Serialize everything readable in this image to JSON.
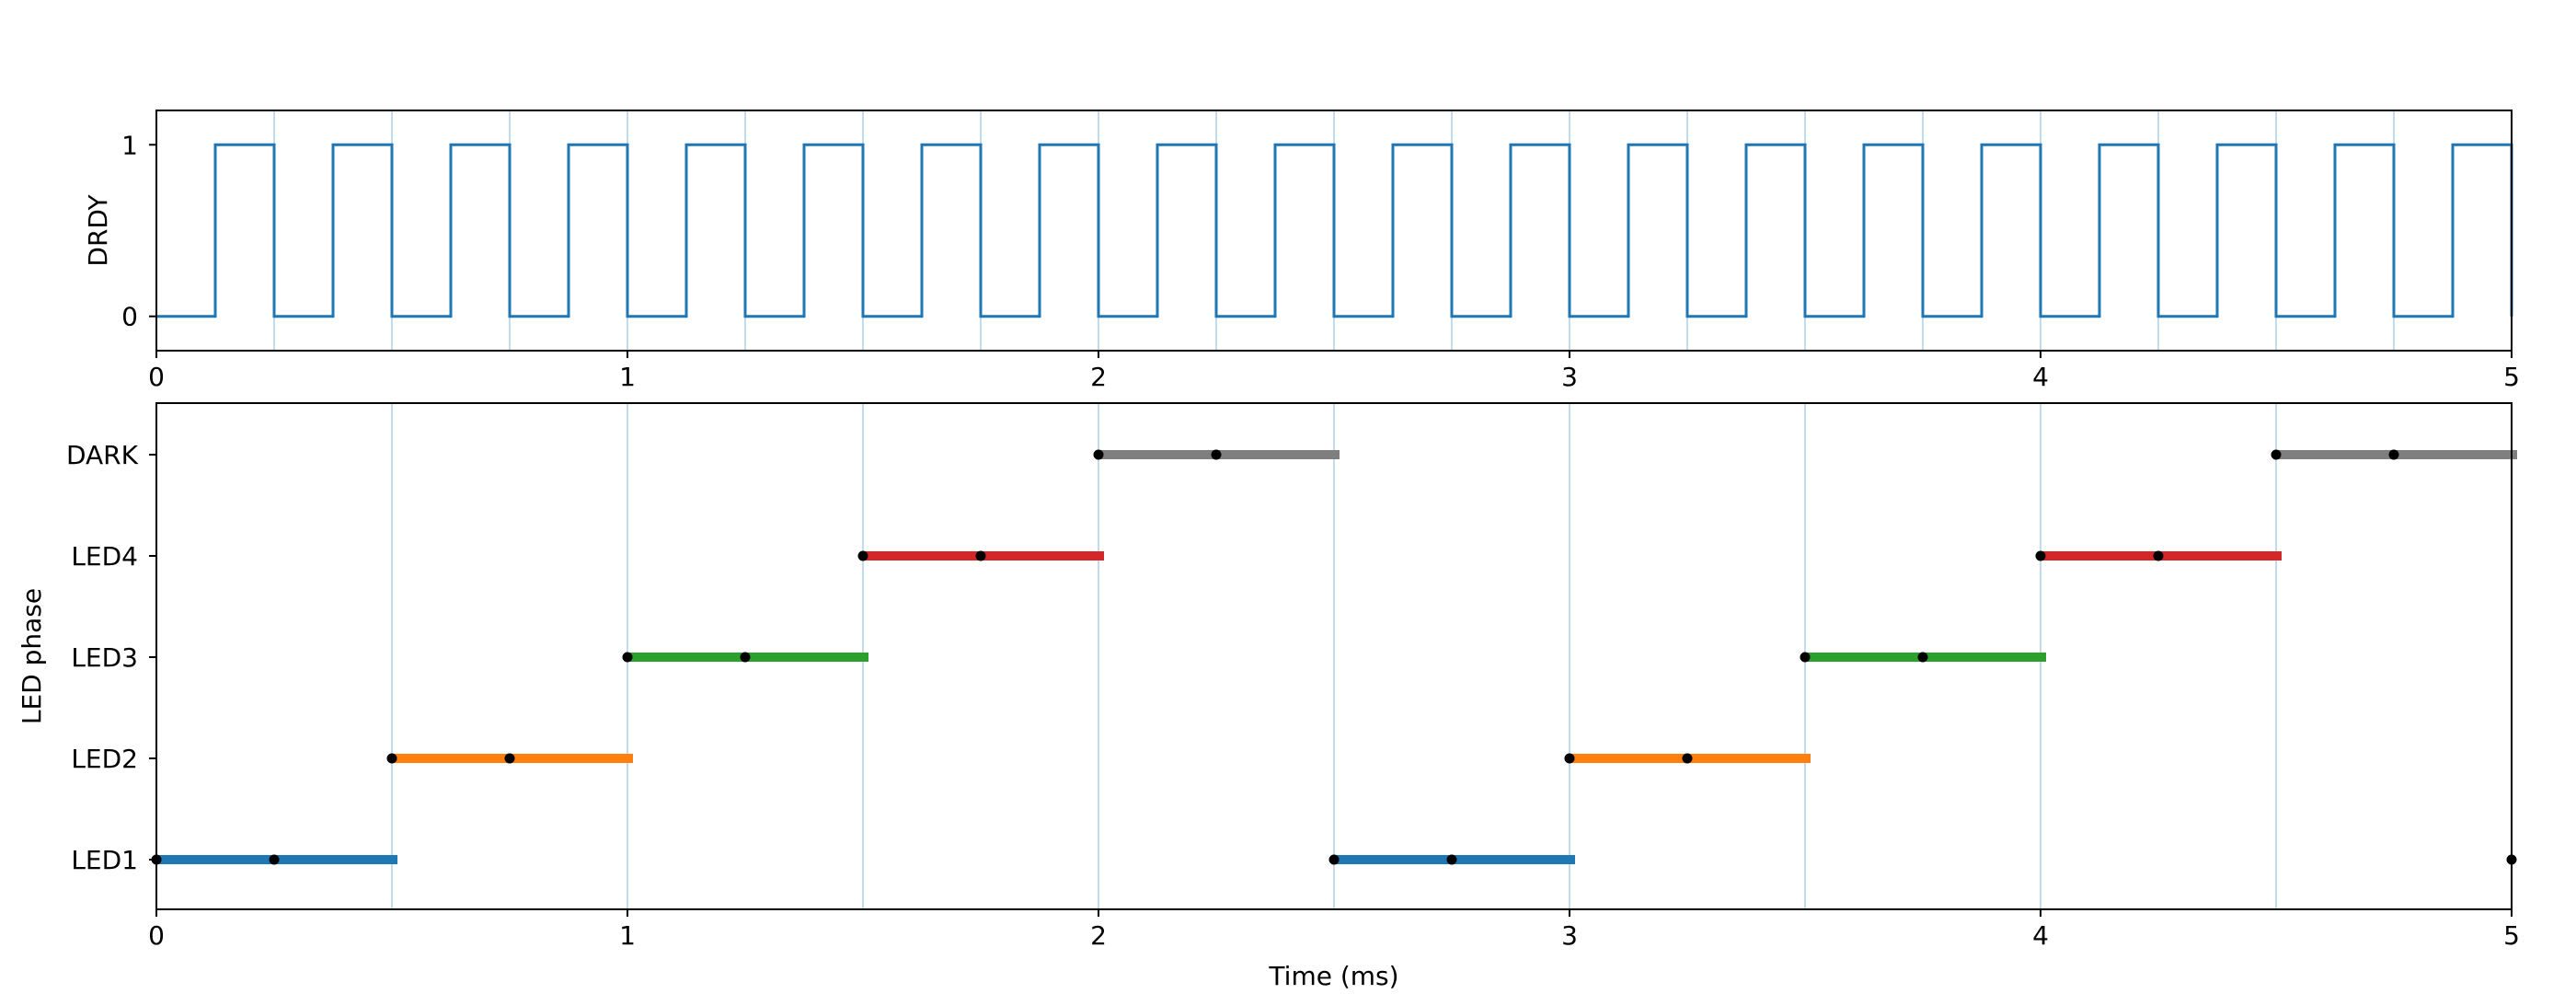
{
  "chart_data": [
    {
      "type": "line",
      "id": "drdy",
      "title": "",
      "xlabel": "",
      "ylabel": "DRDY",
      "xlim": [
        0,
        5
      ],
      "ylim": [
        -0.2,
        1.2
      ],
      "xticks": [
        "0",
        "1",
        "2",
        "3",
        "4",
        "5"
      ],
      "yticks": [
        {
          "value": 0,
          "label": "0"
        },
        {
          "value": 1,
          "label": "1"
        }
      ],
      "step": true,
      "grid_x": [
        0.25,
        0.5,
        0.75,
        1.0,
        1.25,
        1.5,
        1.75,
        2.0,
        2.25,
        2.5,
        2.75,
        3.0,
        3.25,
        3.5,
        3.75,
        4.0,
        4.25,
        4.5,
        4.75
      ],
      "series": [
        {
          "color": "#1f77b4",
          "x": [
            0,
            0.125,
            0.25,
            0.375,
            0.5,
            0.625,
            0.75,
            0.875,
            1.0,
            1.125,
            1.25,
            1.375,
            1.5,
            1.625,
            1.75,
            1.875,
            2.0,
            2.125,
            2.25,
            2.375,
            2.5,
            2.625,
            2.75,
            2.875,
            3.0,
            3.125,
            3.25,
            3.375,
            3.5,
            3.625,
            3.75,
            3.875,
            4.0,
            4.125,
            4.25,
            4.375,
            4.5,
            4.625,
            4.75,
            4.875,
            5.0
          ],
          "y": [
            0,
            1,
            0,
            1,
            0,
            1,
            0,
            1,
            0,
            1,
            0,
            1,
            0,
            1,
            0,
            1,
            0,
            1,
            0,
            1,
            0,
            1,
            0,
            1,
            0,
            1,
            0,
            1,
            0,
            1,
            0,
            1,
            0,
            1,
            0,
            1,
            0,
            1,
            0,
            1,
            0
          ]
        }
      ]
    },
    {
      "type": "timeline",
      "id": "led",
      "title": "",
      "xlabel": "Time (ms)",
      "ylabel": "LED phase",
      "xlim": [
        0,
        5
      ],
      "xticks": [
        "0",
        "1",
        "2",
        "3",
        "4",
        "5"
      ],
      "categories": [
        "LED1",
        "LED2",
        "LED3",
        "LED4",
        "DARK"
      ],
      "grid_x": [
        0.5,
        1.0,
        1.5,
        2.0,
        2.5,
        3.0,
        3.5,
        4.0,
        4.5
      ],
      "colors": {
        "LED1": "#1f77b4",
        "LED2": "#ff7f0e",
        "LED3": "#2ca02c",
        "LED4": "#d62728",
        "DARK": "#7f7f7f"
      },
      "segments": [
        {
          "phase": "LED1",
          "start": 0.0,
          "end": 0.5
        },
        {
          "phase": "LED2",
          "start": 0.5,
          "end": 1.0
        },
        {
          "phase": "LED3",
          "start": 1.0,
          "end": 1.5
        },
        {
          "phase": "LED4",
          "start": 1.5,
          "end": 2.0
        },
        {
          "phase": "DARK",
          "start": 2.0,
          "end": 2.5
        },
        {
          "phase": "LED1",
          "start": 2.5,
          "end": 3.0
        },
        {
          "phase": "LED2",
          "start": 3.0,
          "end": 3.5
        },
        {
          "phase": "LED3",
          "start": 3.5,
          "end": 4.0
        },
        {
          "phase": "LED4",
          "start": 4.0,
          "end": 4.5
        },
        {
          "phase": "DARK",
          "start": 4.5,
          "end": 5.0
        }
      ],
      "markers": [
        {
          "phase": "LED1",
          "x": 0.0
        },
        {
          "phase": "LED1",
          "x": 0.25
        },
        {
          "phase": "LED2",
          "x": 0.5
        },
        {
          "phase": "LED2",
          "x": 0.75
        },
        {
          "phase": "LED3",
          "x": 1.0
        },
        {
          "phase": "LED3",
          "x": 1.25
        },
        {
          "phase": "LED4",
          "x": 1.5
        },
        {
          "phase": "LED4",
          "x": 1.75
        },
        {
          "phase": "DARK",
          "x": 2.0
        },
        {
          "phase": "DARK",
          "x": 2.25
        },
        {
          "phase": "LED1",
          "x": 2.5
        },
        {
          "phase": "LED1",
          "x": 2.75
        },
        {
          "phase": "LED2",
          "x": 3.0
        },
        {
          "phase": "LED2",
          "x": 3.25
        },
        {
          "phase": "LED3",
          "x": 3.5
        },
        {
          "phase": "LED3",
          "x": 3.75
        },
        {
          "phase": "LED4",
          "x": 4.0
        },
        {
          "phase": "LED4",
          "x": 4.25
        },
        {
          "phase": "DARK",
          "x": 4.5
        },
        {
          "phase": "DARK",
          "x": 4.75
        },
        {
          "phase": "LED1",
          "x": 5.0
        }
      ]
    }
  ]
}
